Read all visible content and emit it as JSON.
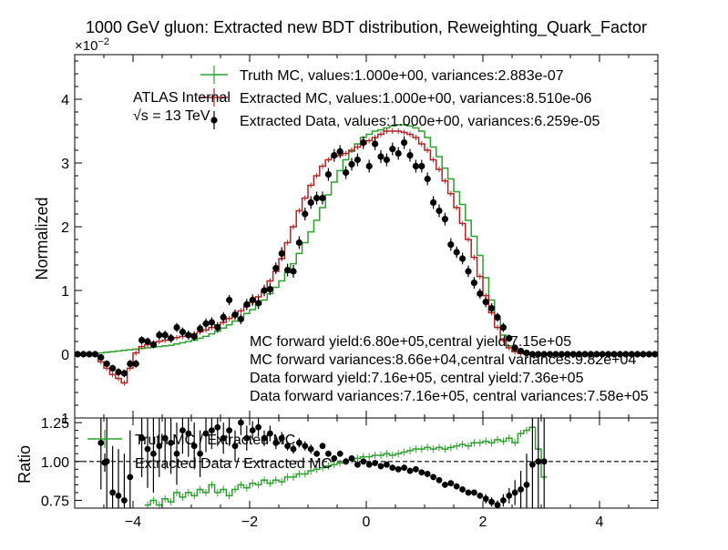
{
  "chart_data": {
    "type": "line",
    "title": "1000 GeV gluon: Extracted new BDT distribution, Reweighting_Quark_Factor",
    "exponent_label": "×10",
    "exponent_power": "−2",
    "atlas_label": "ATLAS",
    "atlas_status": "Internal",
    "energy_label": "√s = 13 TeV",
    "ylabel_main": "Normalized",
    "ylabel_ratio": "Ratio",
    "xlim": [
      -5,
      5
    ],
    "ylim_main": [
      -1,
      4.7
    ],
    "ylim_ratio": [
      0.7,
      1.28
    ],
    "xticks": [
      -4,
      -2,
      0,
      2,
      4
    ],
    "xtick_labels": [
      "−4",
      "−2",
      "0",
      "2",
      "4"
    ],
    "yticks_main": [
      0,
      1,
      2,
      3,
      4
    ],
    "ytick_labels_main": [
      "0",
      "1",
      "2",
      "3",
      "4"
    ],
    "ytick_partial_main": "1",
    "yticks_ratio": [
      0.75,
      1.0,
      1.25
    ],
    "ytick_labels_ratio": [
      "0.75",
      "1.00",
      "1.25"
    ],
    "legend_main": [
      {
        "label": "Truth MC, values:1.000e+00, variances:2.883e-07",
        "color": "#2ca02c",
        "style": "step"
      },
      {
        "label": "Extracted MC, values:1.000e+00, variances:8.510e-06",
        "color": "#b22222",
        "style": "step"
      },
      {
        "label": "Extracted Data, values:1.000e+00, variances:6.259e-05",
        "color": "#000000",
        "style": "marker"
      }
    ],
    "legend_ratio": [
      {
        "label": "Truth MC / Extracted MC",
        "color": "#2ca02c",
        "style": "step"
      },
      {
        "label": "Extracted Data / Extracted MC",
        "color": "#000000",
        "style": "marker"
      }
    ],
    "annotations": [
      "MC forward yield:6.80e+05,central yield:7.15e+05",
      "MC forward variances:8.66e+04,central variances:9.82e+04",
      "Data forward yield:7.16e+05, central yield:7.36e+05",
      "Data forward variances:7.16e+05, central variances:7.58e+05"
    ],
    "bin_width": 0.1,
    "x": [
      -4.95,
      -4.85,
      -4.75,
      -4.65,
      -4.55,
      -4.45,
      -4.35,
      -4.25,
      -4.15,
      -4.05,
      -3.95,
      -3.85,
      -3.75,
      -3.65,
      -3.55,
      -3.45,
      -3.35,
      -3.25,
      -3.15,
      -3.05,
      -2.95,
      -2.85,
      -2.75,
      -2.65,
      -2.55,
      -2.45,
      -2.35,
      -2.25,
      -2.15,
      -2.05,
      -1.95,
      -1.85,
      -1.75,
      -1.65,
      -1.55,
      -1.45,
      -1.35,
      -1.25,
      -1.15,
      -1.05,
      -0.95,
      -0.85,
      -0.75,
      -0.65,
      -0.55,
      -0.45,
      -0.35,
      -0.25,
      -0.15,
      -0.05,
      0.05,
      0.15,
      0.25,
      0.35,
      0.45,
      0.55,
      0.65,
      0.75,
      0.85,
      0.95,
      1.05,
      1.15,
      1.25,
      1.35,
      1.45,
      1.55,
      1.65,
      1.75,
      1.85,
      1.95,
      2.05,
      2.15,
      2.25,
      2.35,
      2.45,
      2.55,
      2.65,
      2.75,
      2.85,
      2.95,
      3.05,
      3.15,
      3.25,
      3.35,
      3.45,
      3.55,
      3.65,
      3.75,
      3.85,
      3.95,
      4.05,
      4.15,
      4.25,
      4.35,
      4.45,
      4.55,
      4.65,
      4.75,
      4.85,
      4.95
    ],
    "series": [
      {
        "name": "Truth MC",
        "color": "#2ca02c",
        "values": [
          0,
          0,
          0,
          0,
          0.02,
          0.03,
          0.04,
          0.05,
          0.06,
          0.07,
          0.08,
          0.09,
          0.1,
          0.11,
          0.12,
          0.13,
          0.14,
          0.16,
          0.18,
          0.2,
          0.22,
          0.25,
          0.28,
          0.32,
          0.36,
          0.41,
          0.46,
          0.52,
          0.58,
          0.64,
          0.7,
          0.78,
          0.85,
          0.95,
          1.05,
          1.15,
          1.28,
          1.42,
          1.58,
          1.75,
          1.92,
          2.1,
          2.3,
          2.5,
          2.7,
          2.88,
          3.05,
          3.18,
          3.3,
          3.4,
          3.45,
          3.5,
          3.52,
          3.55,
          3.58,
          3.6,
          3.6,
          3.58,
          3.55,
          3.5,
          3.4,
          3.25,
          3.1,
          2.92,
          2.75,
          2.55,
          2.35,
          2.1,
          1.85,
          1.55,
          1.2,
          0.85,
          0.55,
          0.3,
          0.13,
          0.05,
          0.02,
          0.01,
          0,
          0,
          0,
          0,
          0,
          0,
          0,
          0,
          0,
          0,
          0,
          0,
          0,
          0,
          0,
          0,
          0,
          0,
          0,
          0,
          0,
          0
        ]
      },
      {
        "name": "Extracted MC",
        "color": "#b22222",
        "values": [
          0,
          0,
          0,
          0,
          -0.12,
          -0.22,
          -0.32,
          -0.38,
          -0.45,
          -0.22,
          0.02,
          0.12,
          0.15,
          0.18,
          0.2,
          0.22,
          0.24,
          0.26,
          0.28,
          0.3,
          0.32,
          0.35,
          0.38,
          0.42,
          0.46,
          0.5,
          0.56,
          0.62,
          0.68,
          0.75,
          0.82,
          0.9,
          1.0,
          1.15,
          1.3,
          1.5,
          1.75,
          2.0,
          2.25,
          2.45,
          2.65,
          2.8,
          2.95,
          3.05,
          3.1,
          3.12,
          3.15,
          3.2,
          3.25,
          3.3,
          3.35,
          3.4,
          3.45,
          3.5,
          3.5,
          3.5,
          3.48,
          3.45,
          3.4,
          3.3,
          3.2,
          3.05,
          2.9,
          2.72,
          2.52,
          2.3,
          2.05,
          1.8,
          1.52,
          1.22,
          0.92,
          0.65,
          0.42,
          0.22,
          0.1,
          0.04,
          0.01,
          0,
          0,
          0,
          0,
          0,
          0,
          0,
          0,
          0,
          0,
          0,
          0,
          0,
          0,
          0,
          0,
          0,
          0,
          0,
          0,
          0,
          0,
          0
        ]
      },
      {
        "name": "Extracted Data",
        "color": "#000000",
        "values": [
          0,
          0,
          0,
          0,
          -0.05,
          -0.15,
          -0.22,
          -0.28,
          -0.3,
          -0.15,
          -0.15,
          0.22,
          0.2,
          0.15,
          0.3,
          0.3,
          0.25,
          0.42,
          0.35,
          0.3,
          0.28,
          0.4,
          0.48,
          0.5,
          0.42,
          0.58,
          0.85,
          0.62,
          0.55,
          0.78,
          0.85,
          0.8,
          1.0,
          1.02,
          1.35,
          1.58,
          1.32,
          1.3,
          1.75,
          2.2,
          2.38,
          2.45,
          2.45,
          2.82,
          3.12,
          3.18,
          2.85,
          2.98,
          3.05,
          3.32,
          2.95,
          3.3,
          3.1,
          3.05,
          3.22,
          3.15,
          3.32,
          3.12,
          2.95,
          2.95,
          2.75,
          2.38,
          2.25,
          2.12,
          1.72,
          1.6,
          1.5,
          1.3,
          1.12,
          0.95,
          0.82,
          0.72,
          0.58,
          0.42,
          0.25,
          0.1,
          0.05,
          0.02,
          0,
          0,
          0,
          0,
          0,
          0,
          0,
          0,
          0,
          0,
          0,
          0,
          0,
          0,
          0,
          0,
          0,
          0,
          0,
          0,
          0,
          0
        ],
        "errors": [
          0.02,
          0.02,
          0.02,
          0.02,
          0.05,
          0.05,
          0.05,
          0.06,
          0.06,
          0.06,
          0.06,
          0.06,
          0.06,
          0.06,
          0.07,
          0.07,
          0.07,
          0.07,
          0.07,
          0.07,
          0.07,
          0.07,
          0.08,
          0.08,
          0.08,
          0.08,
          0.08,
          0.08,
          0.08,
          0.09,
          0.09,
          0.09,
          0.09,
          0.09,
          0.09,
          0.1,
          0.1,
          0.1,
          0.1,
          0.1,
          0.1,
          0.1,
          0.1,
          0.1,
          0.1,
          0.1,
          0.1,
          0.1,
          0.1,
          0.1,
          0.1,
          0.1,
          0.1,
          0.1,
          0.1,
          0.1,
          0.1,
          0.1,
          0.1,
          0.1,
          0.1,
          0.1,
          0.1,
          0.1,
          0.1,
          0.09,
          0.09,
          0.09,
          0.09,
          0.08,
          0.08,
          0.08,
          0.07,
          0.07,
          0.06,
          0.05,
          0.04,
          0.03,
          0.02,
          0.02,
          0.02,
          0.02,
          0.02,
          0.02,
          0.02,
          0.02,
          0.02,
          0.02,
          0.02,
          0.02,
          0.02,
          0.02,
          0.02,
          0.02,
          0.02,
          0.02,
          0.02,
          0.02,
          0.02,
          0.02
        ]
      }
    ],
    "ratio_series": [
      {
        "name": "Truth MC / Extracted MC",
        "color": "#2ca02c",
        "values": [
          null,
          null,
          null,
          null,
          null,
          null,
          null,
          null,
          null,
          null,
          null,
          null,
          0.72,
          0.75,
          0.72,
          0.76,
          0.74,
          0.8,
          0.77,
          0.8,
          0.78,
          0.82,
          0.8,
          0.85,
          0.8,
          0.82,
          0.78,
          0.82,
          0.85,
          0.83,
          0.86,
          0.85,
          0.88,
          0.86,
          0.88,
          0.87,
          0.9,
          0.9,
          0.92,
          0.92,
          0.94,
          0.95,
          0.96,
          0.97,
          0.98,
          0.99,
          1.0,
          1.01,
          1.02,
          1.03,
          1.03,
          1.04,
          1.04,
          1.05,
          1.04,
          1.05,
          1.06,
          1.07,
          1.08,
          1.08,
          1.09,
          1.08,
          1.09,
          1.08,
          1.09,
          1.1,
          1.11,
          1.1,
          1.12,
          1.12,
          1.13,
          1.12,
          1.14,
          1.13,
          1.15,
          1.12,
          1.18,
          1.2,
          1.22,
          1.08,
          0.9,
          null,
          null,
          null,
          null,
          null,
          null,
          null,
          null,
          null,
          null,
          null,
          null,
          null,
          null,
          null,
          null,
          null,
          null,
          null
        ]
      },
      {
        "name": "Extracted Data / Extracted MC",
        "color": "#000000",
        "values": [
          null,
          null,
          null,
          null,
          1.12,
          1.0,
          0.8,
          0.78,
          0.75,
          0.9,
          null,
          1.15,
          1.08,
          1.05,
          1.1,
          1.15,
          1.12,
          1.05,
          1.2,
          1.18,
          1.1,
          1.05,
          1.18,
          1.2,
          1.22,
          1.15,
          1.2,
          1.1,
          1.25,
          1.15,
          1.2,
          1.22,
          1.15,
          1.18,
          1.12,
          1.15,
          1.1,
          1.08,
          1.12,
          1.1,
          1.08,
          1.05,
          1.1,
          1.05,
          1.02,
          1.05,
          1.0,
          1.02,
          0.98,
          1.0,
          0.98,
          0.99,
          0.97,
          0.98,
          0.96,
          0.95,
          0.96,
          0.94,
          0.95,
          0.93,
          0.92,
          0.9,
          0.88,
          0.85,
          0.86,
          0.84,
          0.82,
          0.8,
          0.8,
          0.78,
          0.76,
          0.74,
          0.72,
          0.75,
          0.78,
          0.8,
          0.82,
          0.85,
          0.98,
          1.0,
          1.0,
          null,
          null,
          null,
          null,
          null,
          null,
          null,
          null,
          null,
          null,
          null,
          null,
          null,
          null,
          null,
          null,
          null,
          null,
          null
        ],
        "errors": [
          null,
          null,
          null,
          null,
          0.3,
          0.3,
          0.3,
          0.3,
          0.3,
          0.3,
          null,
          0.25,
          0.25,
          0.25,
          0.2,
          0.2,
          0.2,
          0.2,
          0.15,
          0.15,
          0.15,
          0.15,
          0.12,
          0.12,
          0.12,
          0.1,
          0.1,
          0.1,
          0.08,
          0.08,
          0.06,
          0.06,
          0.05,
          0.05,
          0.04,
          0.04,
          0.03,
          0.03,
          0.03,
          0.03,
          0.03,
          0.02,
          0.02,
          0.02,
          0.02,
          0.02,
          0.02,
          0.02,
          0.02,
          0.02,
          0.02,
          0.02,
          0.02,
          0.02,
          0.02,
          0.02,
          0.02,
          0.02,
          0.02,
          0.02,
          0.02,
          0.02,
          0.02,
          0.02,
          0.02,
          0.02,
          0.02,
          0.02,
          0.02,
          0.02,
          0.03,
          0.03,
          0.03,
          0.04,
          0.05,
          0.08,
          0.12,
          0.2,
          0.35,
          0.5,
          0.5,
          null,
          null,
          null,
          null,
          null,
          null,
          null,
          null,
          null,
          null,
          null,
          null,
          null,
          null,
          null,
          null,
          null,
          null,
          null
        ]
      }
    ]
  }
}
